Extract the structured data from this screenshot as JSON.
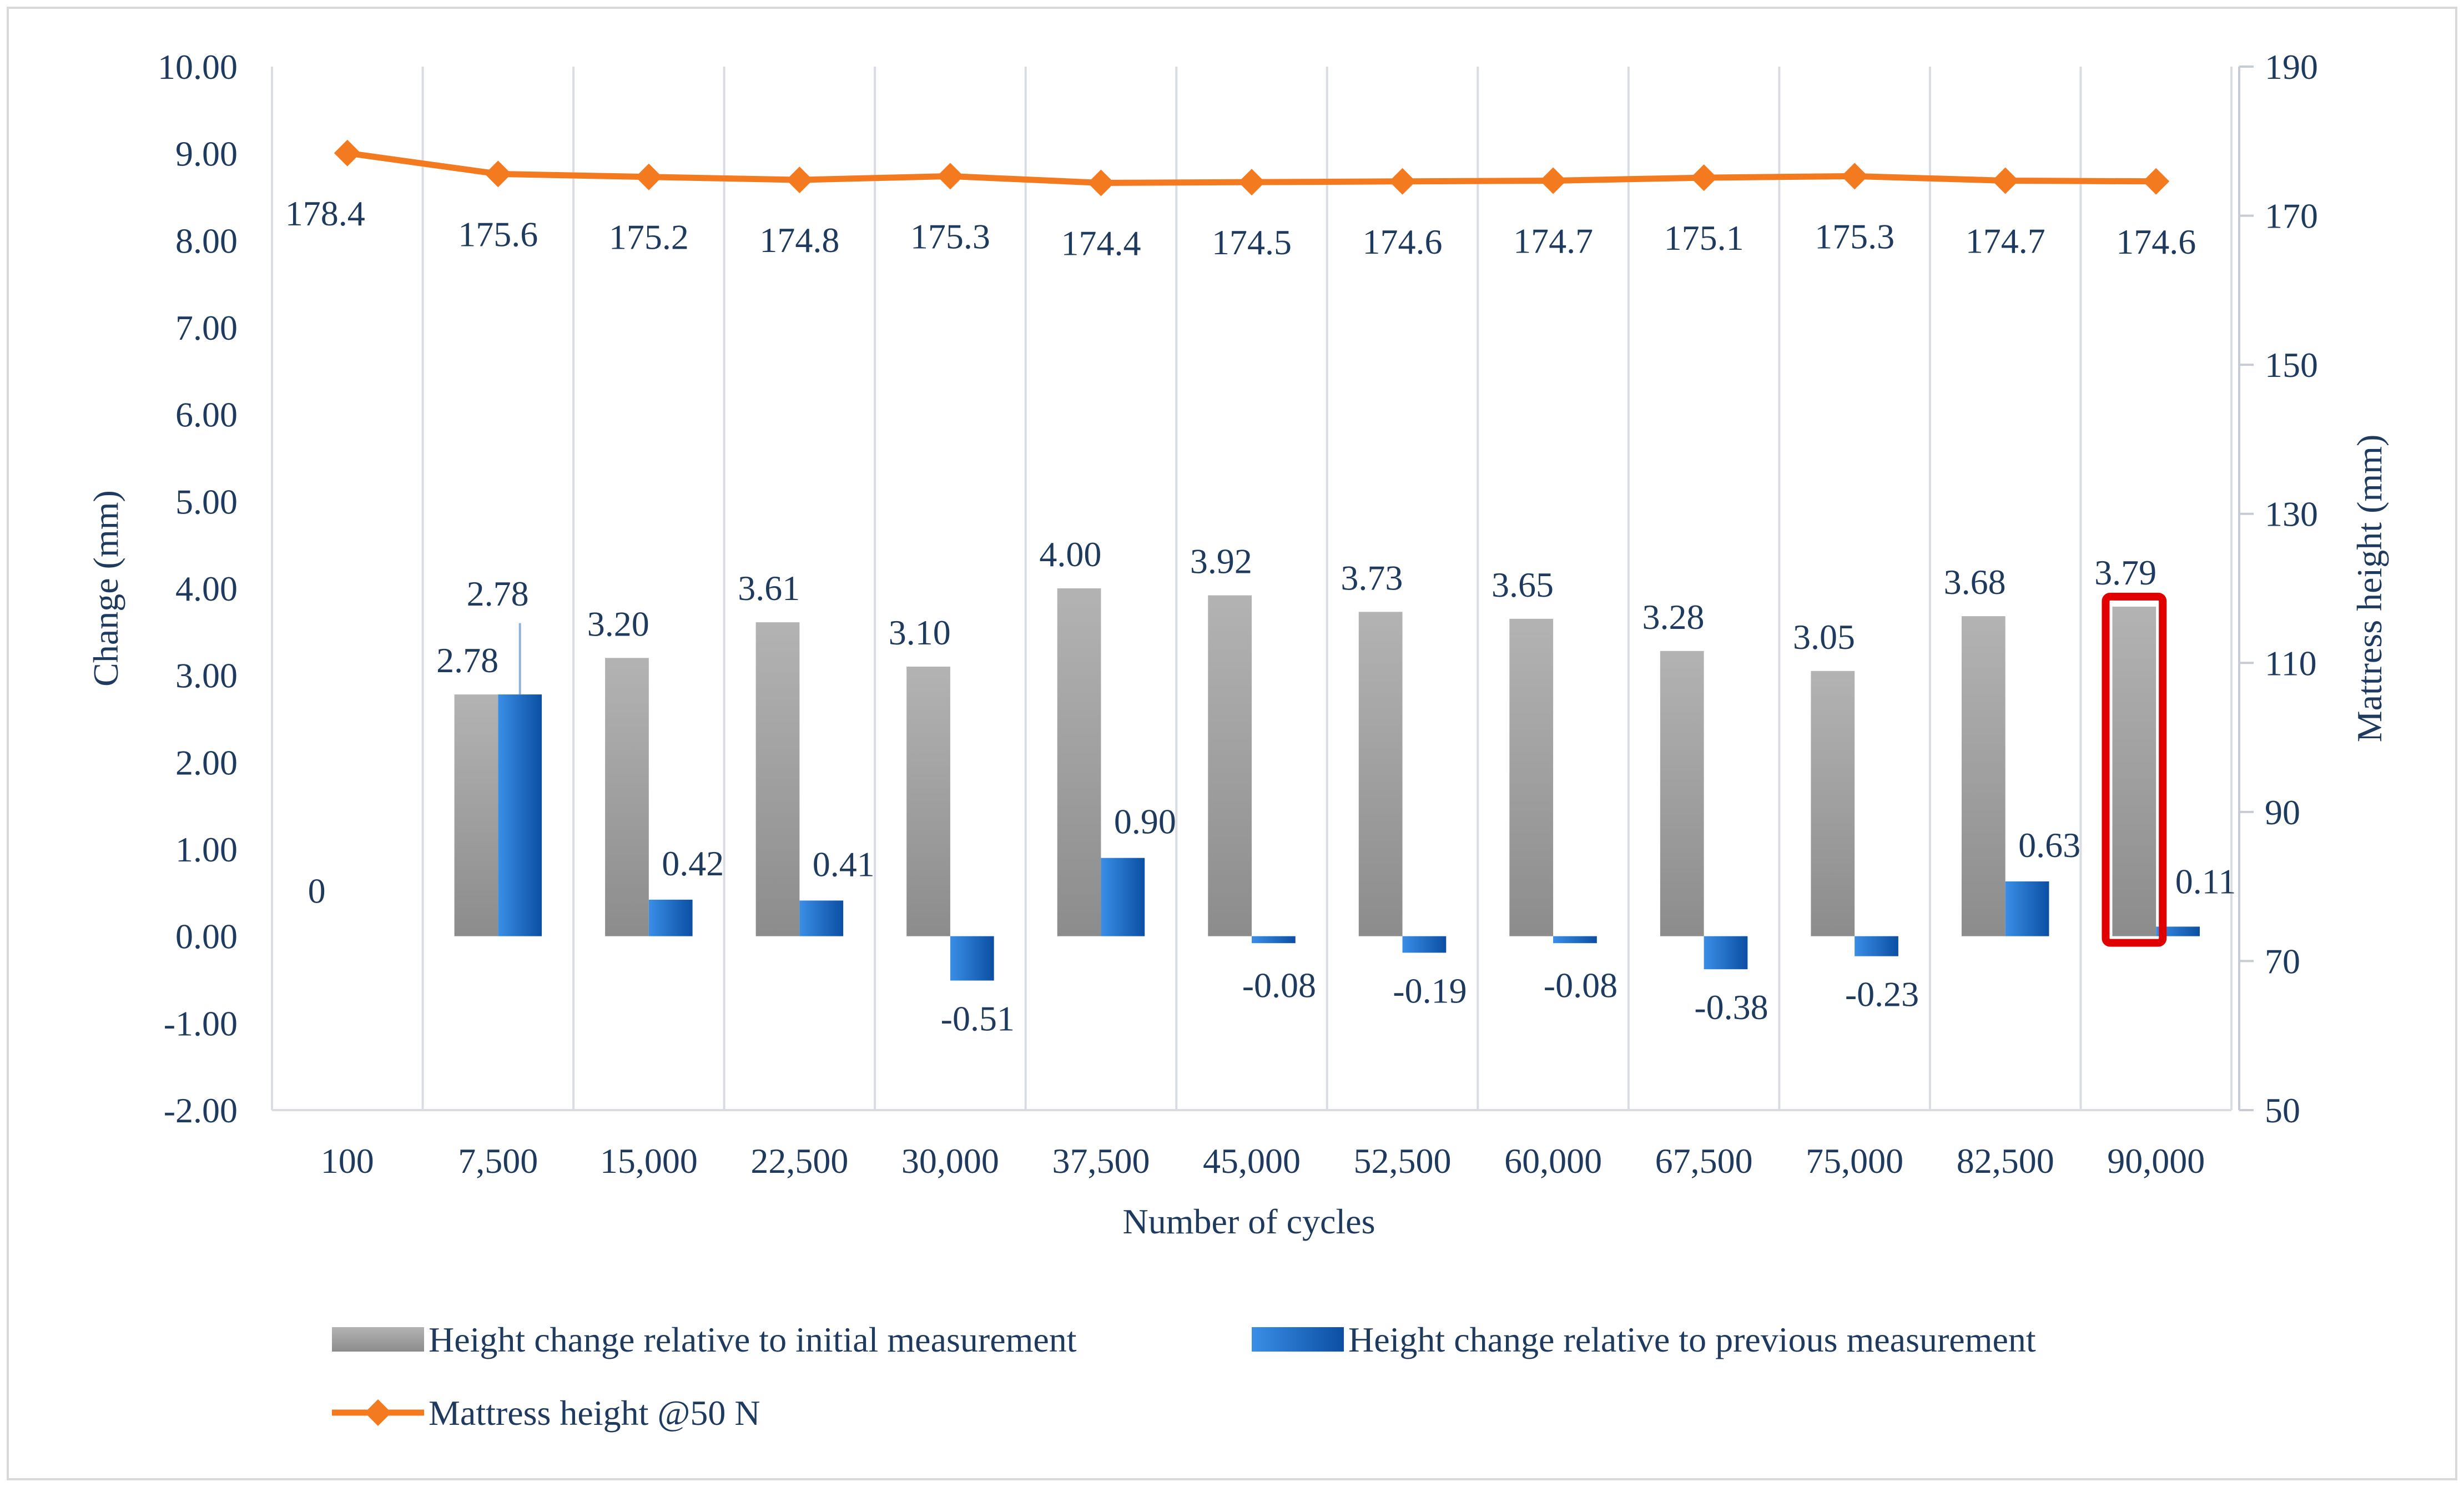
{
  "chart_data": {
    "type": "bar",
    "categories": [
      "100",
      "7,500",
      "15,000",
      "22,500",
      "30,000",
      "37,500",
      "45,000",
      "52,500",
      "60,000",
      "67,500",
      "75,000",
      "82,500",
      "90,000"
    ],
    "series": [
      {
        "name": "Height change relative to initial measurement",
        "axis": "left",
        "kind": "bar",
        "color": "#a6a6a6",
        "values": [
          0,
          2.78,
          3.2,
          3.61,
          3.1,
          4.0,
          3.92,
          3.73,
          3.65,
          3.28,
          3.05,
          3.68,
          3.79
        ],
        "labels": [
          "0",
          "2.78",
          "3.20",
          "3.61",
          "3.10",
          "4.00",
          "3.92",
          "3.73",
          "3.65",
          "3.28",
          "3.05",
          "3.68",
          "3.79"
        ]
      },
      {
        "name": "Height change relative to previous measurement",
        "axis": "left",
        "kind": "bar",
        "color": "#1565c0",
        "values": [
          null,
          2.78,
          0.42,
          0.41,
          -0.51,
          0.9,
          -0.08,
          -0.19,
          -0.08,
          -0.38,
          -0.23,
          0.63,
          0.11
        ],
        "labels": [
          "",
          "2.78",
          "0.42",
          "0.41",
          "-0.51",
          "0.90",
          "-0.08",
          "-0.19",
          "-0.08",
          "-0.38",
          "-0.23",
          "0.63",
          "0.11"
        ]
      },
      {
        "name": "Mattress height @50 N",
        "axis": "right",
        "kind": "line",
        "color": "#f47a20",
        "values": [
          178.4,
          175.6,
          175.2,
          174.8,
          175.3,
          174.4,
          174.5,
          174.6,
          174.7,
          175.1,
          175.3,
          174.7,
          174.6
        ],
        "labels": [
          "178.4",
          "175.6",
          "175.2",
          "174.8",
          "175.3",
          "174.4",
          "174.5",
          "174.6",
          "174.7",
          "175.1",
          "175.3",
          "174.7",
          "174.6"
        ]
      }
    ],
    "left_axis": {
      "title": "Change  (mm)",
      "min": -2,
      "max": 10,
      "step": 1,
      "ticks": [
        "-2.00",
        "-1.00",
        "0.00",
        "1.00",
        "2.00",
        "3.00",
        "4.00",
        "5.00",
        "6.00",
        "7.00",
        "8.00",
        "9.00",
        "10.00"
      ]
    },
    "right_axis": {
      "title": "Mattress height (mm)",
      "min": 50,
      "max": 190,
      "step": 20,
      "ticks": [
        "50",
        "70",
        "90",
        "110",
        "130",
        "150",
        "170",
        "190"
      ]
    },
    "xlabel": "Number of cycles",
    "grid": "vertical",
    "highlight": {
      "category": "90,000",
      "color": "#e00000"
    },
    "legend_position": "bottom"
  }
}
